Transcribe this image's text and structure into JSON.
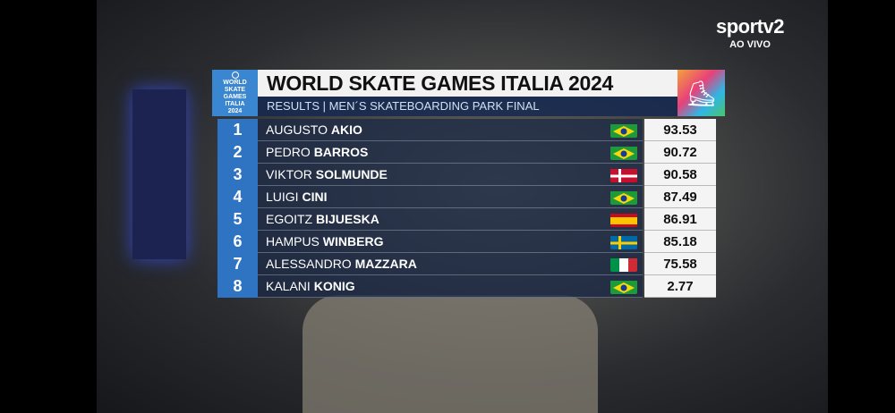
{
  "broadcaster": {
    "name": "sportv2",
    "status": "AO VIVO"
  },
  "event_logo": {
    "lines": [
      "WORLD",
      "SKATE",
      "GAMES",
      "ITALIA",
      "2024"
    ]
  },
  "header": {
    "title": "WORLD SKATE GAMES ITALIA 2024",
    "subtitle": "RESULTS | MEN´S SKATEBOARDING PARK FINAL"
  },
  "results": [
    {
      "rank": "1",
      "first": "AUGUSTO",
      "last": "AKIO",
      "country": "brazil-flag",
      "score": "93.53"
    },
    {
      "rank": "2",
      "first": "PEDRO",
      "last": "BARROS",
      "country": "brazil-flag",
      "score": "90.72"
    },
    {
      "rank": "3",
      "first": "VIKTOR",
      "last": "SOLMUNDE",
      "country": "denmark-flag",
      "score": "90.58"
    },
    {
      "rank": "4",
      "first": "LUIGI",
      "last": "CINI",
      "country": "brazil-flag",
      "score": "87.49"
    },
    {
      "rank": "5",
      "first": "EGOITZ",
      "last": "BIJUESKA",
      "country": "spain-flag",
      "score": "86.91"
    },
    {
      "rank": "6",
      "first": "HAMPUS",
      "last": "WINBERG",
      "country": "sweden-flag",
      "score": "85.18"
    },
    {
      "rank": "7",
      "first": "ALESSANDRO",
      "last": "MAZZARA",
      "country": "italy-flag",
      "score": "75.58"
    },
    {
      "rank": "8",
      "first": "KALANI",
      "last": "KONIG",
      "country": "brazil-flag",
      "score": "2.77"
    }
  ],
  "colors": {
    "rank_blue": "#2f73c3",
    "title_bg": "#f2f2f2",
    "subtitle_bg": "#142850"
  }
}
